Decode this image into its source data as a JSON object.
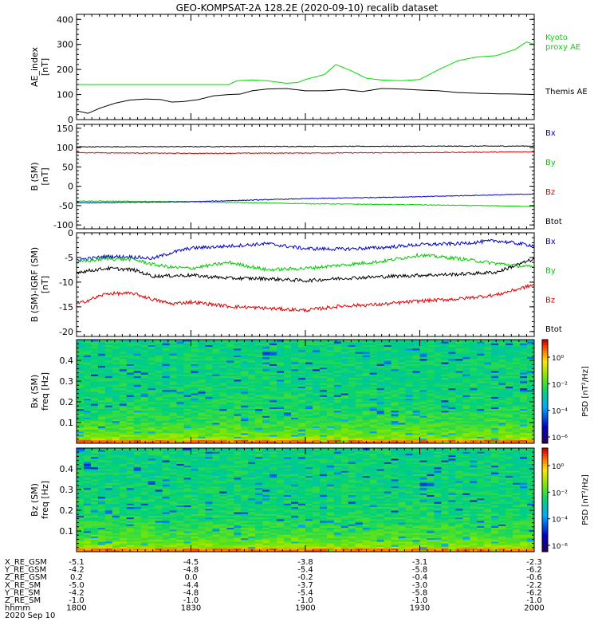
{
  "title": "GEO-KOMPSAT-2A 128.2E (2020-09-10) recalib dataset",
  "chart_data": [
    {
      "type": "line",
      "ylabel": [
        "AE_index",
        "[nT]"
      ],
      "ylim": [
        0,
        420
      ],
      "yticks": [
        0,
        100,
        200,
        300,
        400
      ],
      "legend": [
        {
          "text": "Kyoto",
          "color": "#00dd00"
        },
        {
          "text": "proxy AE",
          "color": "#00dd00"
        },
        {
          "text": "Themis AE",
          "color": "#000000"
        }
      ],
      "series": [
        {
          "name": "Kyoto proxy AE",
          "color": "#00dd00",
          "x": [
            1800,
            1825,
            1832,
            1840,
            1842,
            1846,
            1850,
            1855,
            1858,
            1900,
            1905,
            1908,
            1912,
            1916,
            1920,
            1925,
            1930,
            1935,
            1940,
            1945,
            1950,
            1955,
            1958,
            2000
          ],
          "y": [
            140,
            140,
            140,
            140,
            155,
            158,
            155,
            145,
            148,
            160,
            180,
            220,
            195,
            165,
            158,
            155,
            160,
            200,
            235,
            250,
            255,
            280,
            310,
            300
          ]
        },
        {
          "name": "Themis AE",
          "color": "#000000",
          "x": [
            1800,
            1803,
            1806,
            1810,
            1814,
            1818,
            1822,
            1825,
            1828,
            1832,
            1836,
            1840,
            1843,
            1846,
            1850,
            1855,
            1900,
            1905,
            1910,
            1915,
            1920,
            1925,
            1930,
            1935,
            1940,
            1945,
            1950,
            1955,
            2000
          ],
          "y": [
            35,
            25,
            45,
            65,
            78,
            82,
            80,
            70,
            72,
            80,
            95,
            100,
            102,
            115,
            122,
            124,
            115,
            115,
            120,
            112,
            124,
            122,
            118,
            115,
            108,
            105,
            103,
            102,
            100
          ]
        }
      ]
    },
    {
      "type": "line",
      "ylabel": [
        "B (SM)",
        "[nT]"
      ],
      "ylim": [
        -110,
        160
      ],
      "yticks": [
        -100,
        -50,
        0,
        50,
        100,
        150
      ],
      "legend": [
        {
          "text": "Bx",
          "color": "#0000cc"
        },
        {
          "text": "By",
          "color": "#00cc00"
        },
        {
          "text": "Bz",
          "color": "#dd0000"
        },
        {
          "text": "Btot",
          "color": "#000000"
        }
      ],
      "series": [
        {
          "name": "Btot",
          "color": "#000000",
          "x": [
            1800,
            1900,
            2000
          ],
          "y": [
            102,
            103,
            104
          ]
        },
        {
          "name": "Bz",
          "color": "#dd0000",
          "x": [
            1800,
            1830,
            1900,
            1930,
            2000
          ],
          "y": [
            87,
            85,
            86,
            87,
            89
          ]
        },
        {
          "name": "By",
          "color": "#00cc00",
          "x": [
            1800,
            1830,
            1900,
            1930,
            2000
          ],
          "y": [
            -38,
            -40,
            -45,
            -48,
            -52
          ]
        },
        {
          "name": "Bx",
          "color": "#0000cc",
          "x": [
            1800,
            1830,
            1900,
            1930,
            2000
          ],
          "y": [
            -43,
            -40,
            -32,
            -27,
            -20
          ]
        }
      ]
    },
    {
      "type": "line",
      "ylabel": [
        "B (SM)-IGRF (SM)",
        "[nT]"
      ],
      "ylim": [
        -21,
        0
      ],
      "yticks": [
        -20,
        -15,
        -10,
        -5,
        0
      ],
      "legend": [
        {
          "text": "Bx",
          "color": "#0000cc"
        },
        {
          "text": "By",
          "color": "#00cc00"
        },
        {
          "text": "Bz",
          "color": "#dd0000"
        },
        {
          "text": "Btot",
          "color": "#000000"
        }
      ],
      "series": [
        {
          "name": "Bx",
          "color": "#0000cc",
          "x": [
            1800,
            1808,
            1815,
            1820,
            1825,
            1830,
            1840,
            1850,
            1900,
            1910,
            1920,
            1930,
            1940,
            1950,
            2000
          ],
          "y": [
            -5.5,
            -4.8,
            -4.9,
            -5.2,
            -4.0,
            -3.1,
            -2.7,
            -2.2,
            -3.2,
            -3.3,
            -3.0,
            -2.4,
            -2.2,
            -1.6,
            -2.6
          ]
        },
        {
          "name": "By",
          "color": "#00cc00",
          "x": [
            1800,
            1808,
            1815,
            1820,
            1825,
            1830,
            1840,
            1850,
            1900,
            1910,
            1920,
            1930,
            1940,
            1950,
            2000
          ],
          "y": [
            -6.0,
            -5.2,
            -5.4,
            -6.4,
            -7.0,
            -7.2,
            -6.0,
            -7.5,
            -7.2,
            -6.5,
            -5.8,
            -4.5,
            -5.2,
            -6.2,
            -7.0
          ]
        },
        {
          "name": "Btot",
          "color": "#000000",
          "x": [
            1800,
            1808,
            1815,
            1820,
            1825,
            1830,
            1840,
            1850,
            1900,
            1910,
            1920,
            1930,
            1940,
            1950,
            2000
          ],
          "y": [
            -8.0,
            -7.2,
            -7.5,
            -8.8,
            -8.7,
            -8.6,
            -9.2,
            -9.3,
            -9.7,
            -9.2,
            -8.9,
            -8.6,
            -8.4,
            -8.0,
            -5.3
          ]
        },
        {
          "name": "Bz",
          "color": "#dd0000",
          "x": [
            1800,
            1808,
            1815,
            1820,
            1825,
            1830,
            1840,
            1850,
            1900,
            1910,
            1920,
            1930,
            1940,
            1950,
            2000
          ],
          "y": [
            -14.5,
            -12.3,
            -12.3,
            -13.5,
            -14.4,
            -14.0,
            -14.9,
            -15.3,
            -15.7,
            -14.8,
            -14.5,
            -13.8,
            -13.4,
            -12.6,
            -10.5
          ]
        }
      ]
    },
    {
      "type": "heatmap",
      "ylabel": [
        "Bx (SM)",
        "freq [Hz]"
      ],
      "ylim": [
        0,
        0.5
      ],
      "yticks": [
        0.1,
        0.2,
        0.3,
        0.4
      ],
      "colorbar": {
        "label": "PSD [nT²/Hz]",
        "ticks": [
          "10⁰",
          "10⁻²",
          "10⁻⁴",
          "10⁻⁶"
        ]
      }
    },
    {
      "type": "heatmap",
      "ylabel": [
        "Bz (SM)",
        "freq [Hz]"
      ],
      "ylim": [
        0,
        0.5
      ],
      "yticks": [
        0.1,
        0.2,
        0.3,
        0.4
      ],
      "colorbar": {
        "label": "PSD [nT²/Hz]",
        "ticks": [
          "10⁰",
          "10⁻²",
          "10⁻⁴",
          "10⁻⁶"
        ]
      }
    }
  ],
  "xaxis": {
    "range": [
      1800,
      2000
    ],
    "row_labels": [
      "X_RE_GSM",
      "Y_RE_GSM",
      "Z_RE_GSM",
      "X_RE_SM",
      "Y_RE_SM",
      "Z_RE_SM",
      "hhmm"
    ],
    "ticks": [
      {
        "t": 1800,
        "vals": [
          "-5.1",
          "-4.2",
          "0.2",
          "-5.0",
          "-4.2",
          "-1.0",
          "1800"
        ]
      },
      {
        "t": 1830,
        "vals": [
          "-4.5",
          "-4.8",
          "0.0",
          "-4.4",
          "-4.8",
          "-1.0",
          "1830"
        ]
      },
      {
        "t": 1900,
        "vals": [
          "-3.8",
          "-5.4",
          "-0.2",
          "-3.7",
          "-5.4",
          "-1.0",
          "1900"
        ]
      },
      {
        "t": 1930,
        "vals": [
          "-3.1",
          "-5.8",
          "-0.4",
          "-3.0",
          "-5.8",
          "-1.0",
          "1930"
        ]
      },
      {
        "t": 2000,
        "vals": [
          "-2.3",
          "-6.2",
          "-0.6",
          "-2.2",
          "-6.2",
          "-1.0",
          "2000"
        ]
      }
    ],
    "date": "2020 Sep 10"
  }
}
